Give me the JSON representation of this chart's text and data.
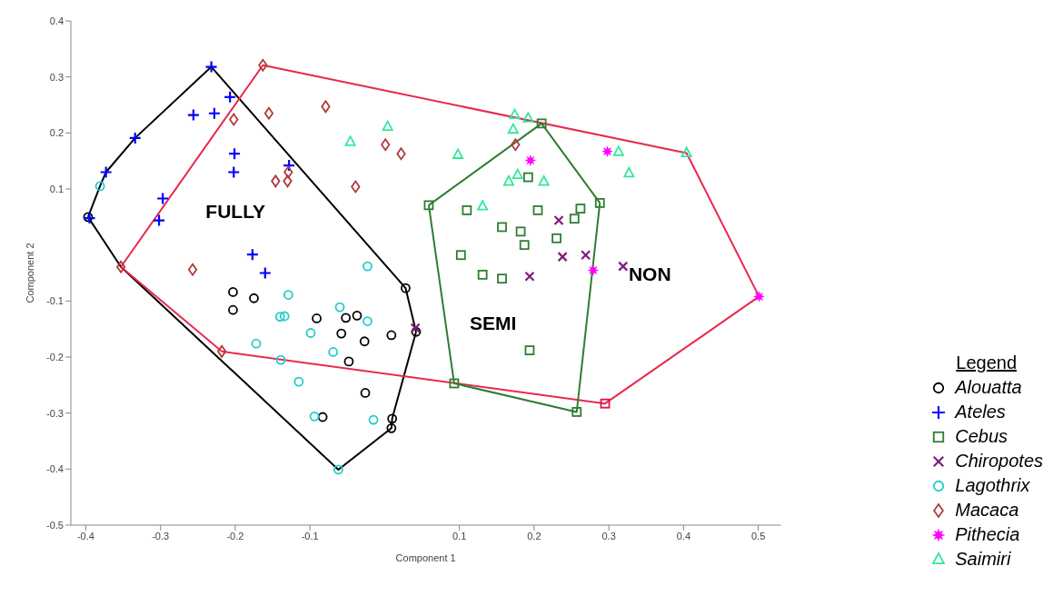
{
  "chart_data": {
    "type": "scatter",
    "xlabel": "Component 1",
    "ylabel": "Component 2",
    "xlim": [
      -0.42,
      0.53
    ],
    "ylim": [
      -0.5,
      0.4
    ],
    "xticks": [
      -0.4,
      -0.3,
      -0.2,
      -0.1,
      0.1,
      0.2,
      0.3,
      0.4,
      0.5
    ],
    "yticks": [
      -0.5,
      -0.4,
      -0.3,
      -0.2,
      -0.1,
      0.1,
      0.2,
      0.3,
      0.4
    ],
    "legend": "bottom right",
    "legend_title": "Legend",
    "annotations": [
      "FULLY",
      "SEMI",
      "NON"
    ],
    "series": [
      {
        "type": "line",
        "color": "#000000",
        "marker": "none",
        "x": [
          -0.397,
          -0.381,
          -0.373,
          -0.334,
          -0.232,
          0.028,
          0.042
        ],
        "values": [
          0.05,
          0.105,
          0.13,
          0.191,
          0.318,
          -0.077,
          -0.155
        ]
      },
      {
        "type": "line",
        "color": "#000000",
        "marker": "none",
        "x": [
          -0.397,
          -0.353,
          -0.062,
          0.009,
          0.01,
          0.042
        ],
        "values": [
          0.05,
          -0.039,
          -0.401,
          -0.327,
          -0.31,
          -0.155
        ]
      },
      {
        "type": "line",
        "color": "#e8294c",
        "marker": "none",
        "x": [
          -0.353,
          -0.163,
          0.404,
          0.501
        ],
        "values": [
          -0.039,
          0.321,
          0.164,
          -0.092
        ]
      },
      {
        "type": "line",
        "color": "#e8294c",
        "marker": "none",
        "x": [
          -0.353,
          -0.218,
          0.295,
          0.501
        ],
        "values": [
          -0.039,
          -0.19,
          -0.283,
          -0.092
        ]
      },
      {
        "type": "line",
        "color": "#2e7d32",
        "marker": "none",
        "x": [
          0.059,
          0.21,
          0.288
        ],
        "values": [
          0.071,
          0.217,
          0.075
        ]
      },
      {
        "type": "line",
        "color": "#2e7d32",
        "marker": "none",
        "x": [
          0.059,
          0.093,
          0.257,
          0.288
        ],
        "values": [
          0.071,
          -0.247,
          -0.298,
          0.075
        ]
      },
      {
        "name": "Alouatta",
        "color": "#000000",
        "marker": "circle",
        "x": [
          -0.397,
          -0.203,
          -0.203,
          -0.175,
          -0.091,
          -0.052,
          -0.037,
          -0.058,
          -0.027,
          -0.048,
          -0.026,
          -0.083,
          0.009,
          0.01,
          0.009,
          0.028,
          0.042
        ],
        "values": [
          0.05,
          -0.084,
          -0.116,
          -0.095,
          -0.131,
          -0.13,
          -0.126,
          -0.158,
          -0.172,
          -0.208,
          -0.264,
          -0.307,
          -0.161,
          -0.31,
          -0.327,
          -0.077,
          -0.155
        ]
      },
      {
        "name": "Ateles",
        "color": "#0000ff",
        "marker": "cross",
        "x": [
          -0.395,
          -0.373,
          -0.334,
          -0.232,
          -0.256,
          -0.228,
          -0.207,
          -0.201,
          -0.202,
          -0.297,
          -0.302,
          -0.177,
          -0.16,
          -0.128
        ],
        "values": [
          0.048,
          0.13,
          0.191,
          0.318,
          0.232,
          0.235,
          0.264,
          0.163,
          0.13,
          0.083,
          0.044,
          -0.017,
          -0.05,
          0.142
        ]
      },
      {
        "name": "Cebus",
        "color": "#2e7d32",
        "marker": "square",
        "x": [
          0.059,
          0.11,
          0.21,
          0.288,
          0.192,
          0.205,
          0.157,
          0.182,
          0.23,
          0.187,
          0.254,
          0.262,
          0.102,
          0.131,
          0.157,
          0.194,
          0.093,
          0.257
        ],
        "values": [
          0.071,
          0.062,
          0.217,
          0.075,
          0.121,
          0.062,
          0.032,
          0.024,
          0.012,
          0.0,
          0.047,
          0.065,
          -0.018,
          -0.053,
          -0.06,
          -0.188,
          -0.247,
          -0.298
        ]
      },
      {
        "name": "Chiropotes",
        "color": "#7b1e7b",
        "marker": "x",
        "x": [
          0.238,
          0.269,
          0.319,
          0.194,
          0.041,
          0.233
        ],
        "values": [
          -0.021,
          -0.018,
          -0.038,
          -0.056,
          -0.148,
          0.044
        ]
      },
      {
        "name": "Lagothrix",
        "color": "#22cccc",
        "marker": "circle",
        "x": [
          -0.381,
          -0.023,
          -0.129,
          -0.14,
          -0.134,
          -0.06,
          -0.023,
          -0.099,
          -0.172,
          -0.069,
          -0.139,
          -0.115,
          -0.094,
          -0.015,
          -0.062
        ],
        "values": [
          0.105,
          -0.038,
          -0.089,
          -0.128,
          -0.127,
          -0.111,
          -0.136,
          -0.157,
          -0.176,
          -0.191,
          -0.205,
          -0.244,
          -0.306,
          -0.312,
          -0.401
        ]
      },
      {
        "name": "Macaca",
        "color": "#b03a3a",
        "marker": "diamond",
        "x": [
          -0.353,
          -0.257,
          -0.202,
          -0.163,
          -0.155,
          -0.079,
          -0.146,
          -0.13,
          -0.129,
          -0.039,
          0.001,
          0.022,
          0.175,
          -0.218
        ],
        "values": [
          -0.039,
          -0.044,
          0.224,
          0.321,
          0.235,
          0.247,
          0.114,
          0.114,
          0.13,
          0.104,
          0.179,
          0.163,
          0.179,
          -0.19
        ]
      },
      {
        "name": "Pithecia",
        "color": "#ff00ff",
        "marker": "star",
        "x": [
          0.195,
          0.298,
          0.279,
          0.501
        ],
        "values": [
          0.151,
          0.167,
          -0.045,
          -0.092
        ]
      },
      {
        "name": "Saimiri",
        "color": "#33e89a",
        "marker": "triangle",
        "x": [
          0.004,
          -0.046,
          0.098,
          0.174,
          0.192,
          0.172,
          0.178,
          0.166,
          0.213,
          0.131,
          0.313,
          0.327,
          0.404
        ],
        "values": [
          0.211,
          0.184,
          0.161,
          0.232,
          0.226,
          0.206,
          0.125,
          0.113,
          0.113,
          0.069,
          0.166,
          0.128,
          0.164
        ]
      },
      {
        "color": "#e0143c",
        "marker": "square",
        "x": [
          0.295
        ],
        "values": [
          -0.283
        ]
      }
    ]
  }
}
